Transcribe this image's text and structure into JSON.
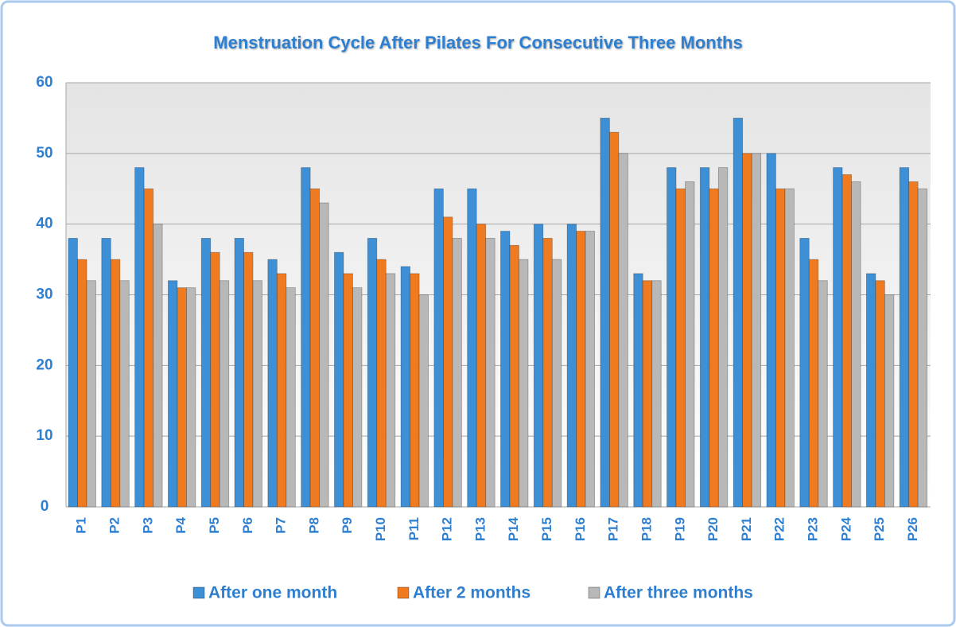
{
  "chart_data": {
    "type": "bar",
    "title": "Menstruation Cycle After Pilates For Consecutive Three Months",
    "categories": [
      "P1",
      "P2",
      "P3",
      "P4",
      "P5",
      "P6",
      "P7",
      "P8",
      "P9",
      "P10",
      "P11",
      "P12",
      "P13",
      "P14",
      "P15",
      "P16",
      "P17",
      "P18",
      "P19",
      "P20",
      "P21",
      "P22",
      "P23",
      "P24",
      "P25",
      "P26"
    ],
    "series": [
      {
        "name": "After one month",
        "color": "#3d8fd6",
        "values": [
          38,
          38,
          48,
          32,
          38,
          38,
          35,
          48,
          36,
          38,
          34,
          45,
          45,
          39,
          40,
          40,
          55,
          33,
          48,
          48,
          55,
          50,
          38,
          48,
          33,
          48
        ]
      },
      {
        "name": "After 2 months",
        "color": "#f07a20",
        "values": [
          35,
          35,
          45,
          31,
          36,
          36,
          33,
          45,
          33,
          35,
          33,
          41,
          40,
          37,
          38,
          39,
          53,
          32,
          45,
          45,
          50,
          45,
          35,
          47,
          32,
          46
        ]
      },
      {
        "name": "After three months",
        "color": "#b8b8b8",
        "values": [
          32,
          32,
          40,
          31,
          32,
          32,
          31,
          43,
          31,
          33,
          30,
          38,
          38,
          35,
          35,
          39,
          50,
          32,
          46,
          48,
          50,
          45,
          32,
          46,
          30,
          45
        ]
      }
    ],
    "ylim": [
      0,
      60
    ],
    "yticks": [
      0,
      10,
      20,
      30,
      40,
      50,
      60
    ],
    "grid": true,
    "legend": "bottom"
  }
}
